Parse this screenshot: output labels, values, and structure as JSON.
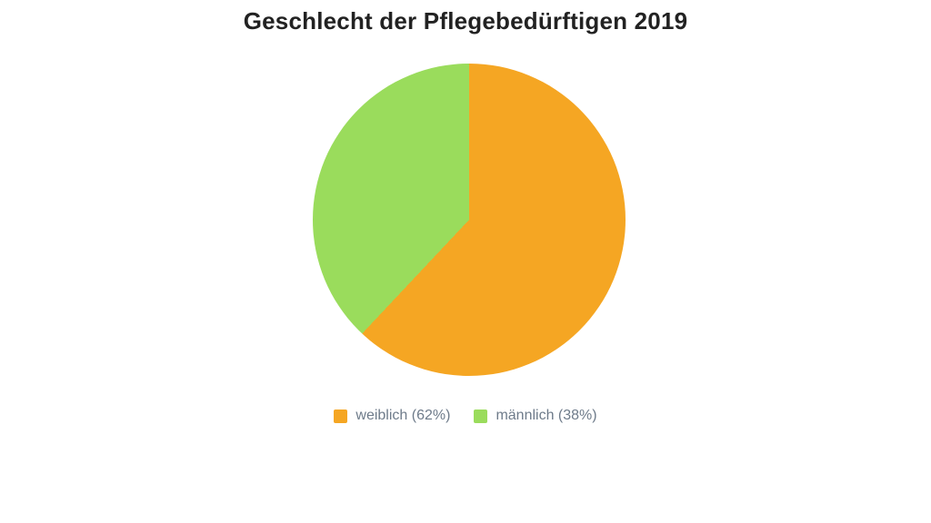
{
  "title": "Geschlecht der Pflegebedürftigen 2019",
  "chart_data": {
    "type": "pie",
    "title": "Geschlecht der Pflegebedürftigen 2019",
    "labels": [
      "weiblich",
      "männlich"
    ],
    "values": [
      62,
      38
    ],
    "unit": "%",
    "start_angle_deg": 0,
    "direction": "clockwise",
    "legend_position": "bottom",
    "segments": [
      {
        "label": "weiblich",
        "value": 62,
        "color": "#F5A623",
        "legend_label": "weiblich (62%)"
      },
      {
        "label": "männlich",
        "value": 38,
        "color": "#9ADC5C",
        "legend_label": "männlich (38%)"
      }
    ]
  },
  "colors": {
    "background": "#ffffff",
    "title_text": "#222222",
    "legend_text": "#6e7b8a"
  }
}
